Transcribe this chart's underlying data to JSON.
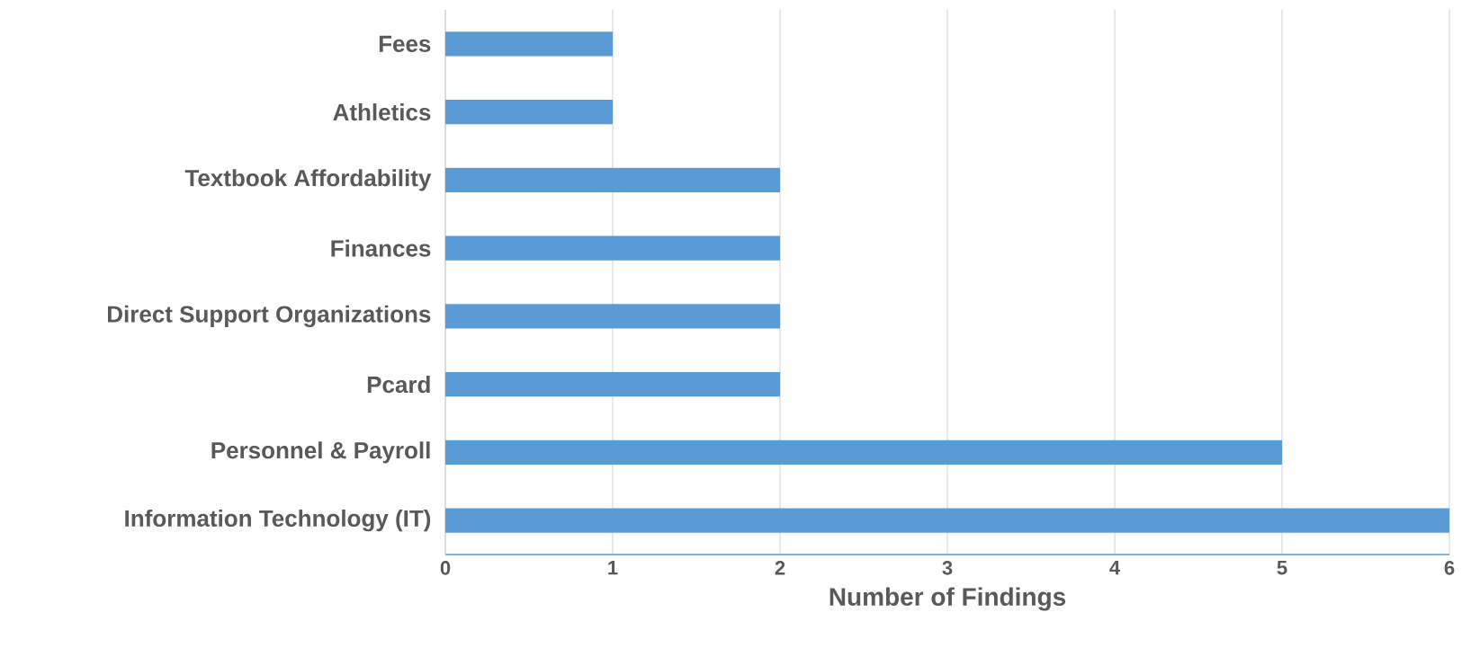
{
  "chart_data": {
    "type": "bar",
    "orientation": "horizontal",
    "xlabel": "Number of Findings",
    "categories": [
      "Fees",
      "Athletics",
      "Textbook Affordability",
      "Finances",
      "Direct Support Organizations",
      "Pcard",
      "Personnel & Payroll",
      "Information Technology (IT)"
    ],
    "values": [
      1,
      1,
      2,
      2,
      2,
      2,
      5,
      6
    ],
    "color": "#5b9bd5",
    "xlim": [
      0,
      6
    ],
    "xticks": [
      0,
      1,
      2,
      3,
      4,
      5,
      6
    ],
    "grid": "x"
  }
}
